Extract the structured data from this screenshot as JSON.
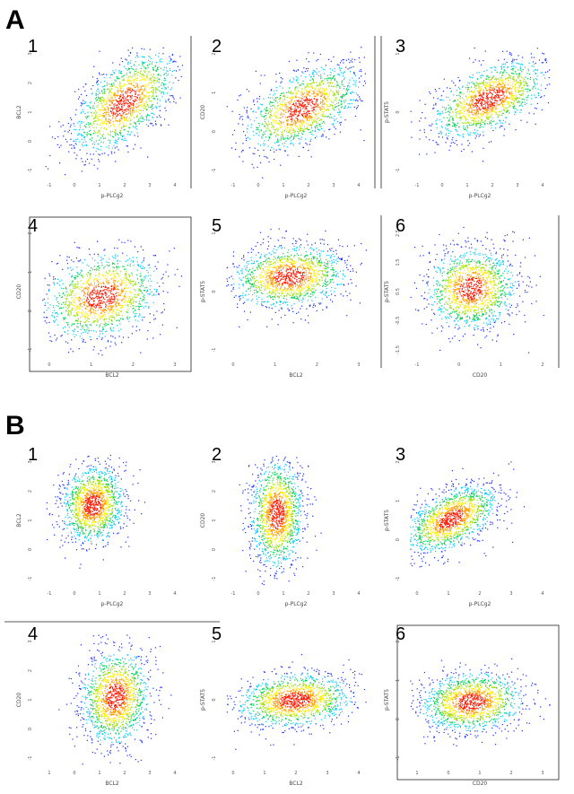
{
  "panels": [
    {
      "letter": "A",
      "plots": [
        {
          "number": "1",
          "xlabel": "p-PLCg2",
          "ylabel": "BCL2",
          "xticks": [
            "-1",
            "0",
            "1",
            "2",
            "3",
            "4"
          ],
          "yticks": [
            "-1",
            "0",
            "1",
            "2",
            "3"
          ],
          "frame": "right"
        },
        {
          "number": "2",
          "xlabel": "p-PLCg2",
          "ylabel": "CD20",
          "xticks": [
            "-1",
            "0",
            "1",
            "2",
            "3",
            "4"
          ],
          "yticks": [
            "-1",
            "0",
            "1",
            "2"
          ],
          "frame": "right"
        },
        {
          "number": "3",
          "xlabel": "p-PLCg2",
          "ylabel": "p-STAT5",
          "xticks": [
            "-1",
            "0",
            "1",
            "2",
            "3",
            "4"
          ],
          "yticks": [
            "-1",
            "0",
            "1"
          ],
          "frame": "left"
        },
        {
          "number": "4",
          "xlabel": "BCL2",
          "ylabel": "CD20",
          "xticks": [
            "0",
            "1",
            "2",
            "3"
          ],
          "yticks": [
            "-1",
            "0",
            "1",
            "2"
          ],
          "frame": "box"
        },
        {
          "number": "5",
          "xlabel": "BCL2",
          "ylabel": "p-STAT5",
          "xticks": [
            "0",
            "1",
            "2",
            "3"
          ],
          "yticks": [
            "-1",
            "0",
            "1"
          ],
          "frame": "none"
        },
        {
          "number": "6",
          "xlabel": "CD20",
          "ylabel": "p-STAT5",
          "xticks": [
            "-1",
            "0",
            "1",
            "2"
          ],
          "yticks": [
            "-1.5",
            "-0.5",
            "0.5",
            "1.5",
            "2.5"
          ],
          "frame": "both"
        }
      ]
    },
    {
      "letter": "B",
      "plots": [
        {
          "number": "1",
          "xlabel": "p-PLCg2",
          "ylabel": "BCL2",
          "xticks": [
            "-1",
            "0",
            "1",
            "2",
            "3",
            "4"
          ],
          "yticks": [
            "-1",
            "0",
            "1",
            "2",
            "3"
          ],
          "frame": "none"
        },
        {
          "number": "2",
          "xlabel": "p-PLCg2",
          "ylabel": "CD20",
          "xticks": [
            "-1",
            "0",
            "1",
            "2",
            "3",
            "4"
          ],
          "yticks": [
            "-1",
            "0",
            "1",
            "2",
            "3"
          ],
          "frame": "none"
        },
        {
          "number": "3",
          "xlabel": "p-PLCg2",
          "ylabel": "p-STAT5",
          "xticks": [
            "0",
            "1",
            "2",
            "3",
            "4"
          ],
          "yticks": [
            "-1",
            "0",
            "1",
            "2"
          ],
          "frame": "none"
        },
        {
          "number": "4",
          "xlabel": "BCL2",
          "ylabel": "CD20",
          "xticks": [
            "1",
            "0",
            "1",
            "2",
            "3",
            "4"
          ],
          "yticks": [
            "-1",
            "0",
            "1",
            "2",
            "3"
          ],
          "frame": "top"
        },
        {
          "number": "5",
          "xlabel": "BCL2",
          "ylabel": "p-STAT5",
          "xticks": [
            "0",
            "1",
            "2",
            "3",
            "4"
          ],
          "yticks": [
            "-1",
            "0",
            "1"
          ],
          "frame": "none"
        },
        {
          "number": "6",
          "xlabel": "CD20",
          "ylabel": "p-STAT5",
          "xticks": [
            "1",
            "0",
            "1",
            "2",
            "3"
          ],
          "yticks": [
            "-1",
            "0",
            "1",
            "2"
          ],
          "frame": "box"
        }
      ]
    }
  ],
  "chart_data": {
    "type": "scatter",
    "description_style": "density-colored scatter",
    "colormap": [
      "#1a2cff",
      "#00c8ff",
      "#00d050",
      "#9be000",
      "#ffee00",
      "#ff9a00",
      "#ff1a00"
    ],
    "plots": [
      {
        "id": "A1",
        "x_label": "p-PLCg2",
        "y_label": "BCL2",
        "xlim": [
          -1,
          4
        ],
        "ylim": [
          -1,
          3
        ],
        "density_center": [
          1.9,
          1.3
        ],
        "spread": [
          0.9,
          0.6
        ],
        "tilt": 0.5
      },
      {
        "id": "A2",
        "x_label": "p-PLCg2",
        "y_label": "CD20",
        "xlim": [
          -1,
          4
        ],
        "ylim": [
          -1,
          2
        ],
        "density_center": [
          1.7,
          0.6
        ],
        "spread": [
          1.0,
          0.4
        ],
        "tilt": 0.25
      },
      {
        "id": "A3",
        "x_label": "p-PLCg2",
        "y_label": "p-STAT5",
        "xlim": [
          -1,
          4
        ],
        "ylim": [
          -1,
          1.5
        ],
        "density_center": [
          1.8,
          0.5
        ],
        "spread": [
          1.0,
          0.3
        ],
        "tilt": 0.2
      },
      {
        "id": "A4",
        "x_label": "BCL2",
        "y_label": "CD20",
        "xlim": [
          -0.5,
          3.5
        ],
        "ylim": [
          -1,
          2.2
        ],
        "density_center": [
          1.2,
          0.5
        ],
        "spread": [
          0.8,
          0.5
        ],
        "tilt": 0.15
      },
      {
        "id": "A5",
        "x_label": "BCL2",
        "y_label": "p-STAT5",
        "xlim": [
          -0.5,
          3.5
        ],
        "ylim": [
          -1,
          1.6
        ],
        "density_center": [
          1.3,
          0.6
        ],
        "spread": [
          0.8,
          0.3
        ],
        "tilt": 0.05
      },
      {
        "id": "A6",
        "x_label": "CD20",
        "y_label": "p-STAT5",
        "xlim": [
          -1.2,
          2
        ],
        "ylim": [
          -1.5,
          2.5
        ],
        "density_center": [
          0.2,
          0.6
        ],
        "spread": [
          0.5,
          0.6
        ],
        "tilt": 0.05
      },
      {
        "id": "B1",
        "x_label": "p-PLCg2",
        "y_label": "BCL2",
        "xlim": [
          -1,
          4.5
        ],
        "ylim": [
          -1,
          3.2
        ],
        "density_center": [
          1.0,
          1.6
        ],
        "spread": [
          0.6,
          0.6
        ],
        "tilt": 0.1
      },
      {
        "id": "B2",
        "x_label": "p-PLCg2",
        "y_label": "CD20",
        "xlim": [
          -1,
          4.5
        ],
        "ylim": [
          -1,
          3
        ],
        "density_center": [
          1.0,
          1.2
        ],
        "spread": [
          0.5,
          0.8
        ],
        "tilt": 0.05
      },
      {
        "id": "B3",
        "x_label": "p-PLCg2",
        "y_label": "p-STAT5",
        "xlim": [
          -0.5,
          4.5
        ],
        "ylim": [
          -1.2,
          2.5
        ],
        "density_center": [
          1.0,
          0.7
        ],
        "spread": [
          0.8,
          0.4
        ],
        "tilt": 0.3
      },
      {
        "id": "B4",
        "x_label": "BCL2",
        "y_label": "CD20",
        "xlim": [
          -1,
          4
        ],
        "ylim": [
          -1,
          3
        ],
        "density_center": [
          1.6,
          1.1
        ],
        "spread": [
          0.6,
          0.7
        ],
        "tilt": 0.1
      },
      {
        "id": "B5",
        "x_label": "BCL2",
        "y_label": "p-STAT5",
        "xlim": [
          -0.5,
          4
        ],
        "ylim": [
          -1,
          2
        ],
        "density_center": [
          1.7,
          0.5
        ],
        "spread": [
          0.9,
          0.3
        ],
        "tilt": 0.05
      },
      {
        "id": "B6",
        "x_label": "CD20",
        "y_label": "p-STAT5",
        "xlim": [
          -1,
          4
        ],
        "ylim": [
          -1.2,
          2.5
        ],
        "density_center": [
          1.2,
          0.6
        ],
        "spread": [
          0.9,
          0.4
        ],
        "tilt": 0.05
      }
    ]
  }
}
